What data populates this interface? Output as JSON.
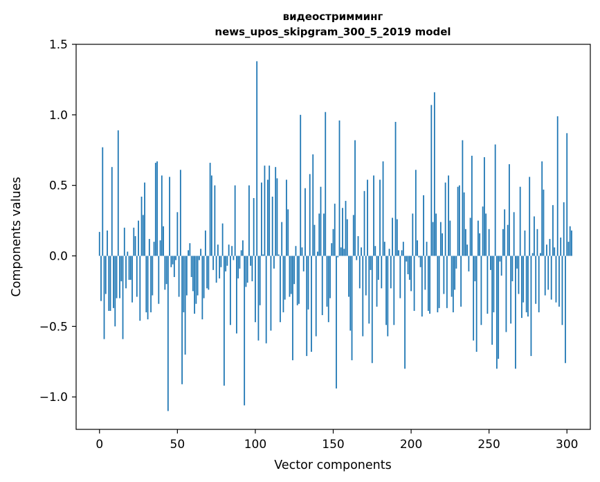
{
  "chart_data": {
    "type": "bar",
    "title_lines": [
      "видеостримминг",
      "news_upos_skipgram_300_5_2019 model"
    ],
    "xlabel": "Vector components",
    "ylabel": "Components values",
    "xlim": [
      -15,
      315
    ],
    "ylim": [
      -1.23,
      1.5
    ],
    "xticks": [
      0,
      50,
      100,
      150,
      200,
      250,
      300
    ],
    "yticks": [
      -1.0,
      -0.5,
      0.0,
      0.5,
      1.0,
      1.5
    ],
    "ytick_labels": [
      "−1.0",
      "−0.5",
      "0.0",
      "0.5",
      "1.0",
      "1.5"
    ],
    "bar_color": "#1f77b4",
    "values": [
      0.17,
      -0.32,
      0.77,
      -0.59,
      -0.27,
      0.18,
      -0.39,
      -0.39,
      0.63,
      -0.37,
      -0.5,
      -0.3,
      0.89,
      -0.3,
      -0.18,
      -0.59,
      0.2,
      -0.23,
      0.03,
      -0.17,
      -0.17,
      -0.33,
      0.2,
      0.14,
      -0.29,
      0.25,
      -0.46,
      0.42,
      0.29,
      0.52,
      -0.4,
      -0.45,
      0.12,
      -0.4,
      -0.28,
      0.1,
      0.66,
      0.67,
      -0.34,
      0.11,
      0.57,
      0.21,
      -0.24,
      -0.2,
      -1.1,
      0.56,
      -0.08,
      -0.06,
      -0.15,
      -0.03,
      0.31,
      -0.29,
      0.61,
      -0.91,
      -0.4,
      -0.7,
      -0.28,
      0.04,
      0.09,
      -0.15,
      -0.25,
      -0.41,
      -0.34,
      -0.28,
      -0.03,
      0.05,
      -0.45,
      -0.3,
      0.18,
      -0.23,
      -0.24,
      0.66,
      0.57,
      -0.1,
      0.5,
      -0.19,
      0.08,
      -0.16,
      -0.08,
      0.23,
      -0.92,
      -0.11,
      -0.07,
      0.08,
      -0.49,
      0.07,
      -0.03,
      0.5,
      -0.55,
      -0.16,
      -0.09,
      0.04,
      0.11,
      -1.06,
      -0.22,
      -0.19,
      0.5,
      -0.07,
      -0.18,
      0.41,
      -0.47,
      1.38,
      -0.6,
      -0.35,
      0.52,
      0.01,
      0.64,
      -0.62,
      0.54,
      0.64,
      -0.53,
      0.42,
      -0.09,
      0.63,
      0.55,
      0.01,
      -0.47,
      0.24,
      -0.4,
      -0.31,
      0.54,
      0.33,
      -0.29,
      -0.27,
      -0.74,
      -0.2,
      0.07,
      -0.35,
      -0.34,
      1.0,
      0.06,
      -0.11,
      0.48,
      -0.71,
      -0.38,
      0.58,
      -0.68,
      0.72,
      0.22,
      -0.57,
      0.03,
      0.3,
      0.49,
      -0.42,
      0.3,
      1.02,
      -0.36,
      -0.47,
      -0.3,
      0.09,
      0.19,
      0.37,
      -0.94,
      -0.01,
      0.96,
      0.06,
      0.34,
      0.05,
      0.39,
      0.26,
      -0.29,
      -0.53,
      -0.74,
      0.29,
      0.82,
      -0.03,
      0.14,
      -0.23,
      0.06,
      -0.57,
      0.46,
      -0.28,
      0.54,
      -0.48,
      -0.1,
      -0.76,
      0.57,
      0.07,
      -0.36,
      -0.17,
      0.54,
      -0.23,
      0.67,
      0.1,
      -0.49,
      -0.57,
      0.05,
      -0.23,
      0.27,
      -0.49,
      0.95,
      0.26,
      0.04,
      -0.3,
      0.04,
      0.1,
      -0.8,
      -0.04,
      -0.13,
      -0.17,
      -0.25,
      0.3,
      -0.39,
      0.61,
      0.11,
      -0.01,
      -0.08,
      -0.43,
      0.43,
      -0.24,
      0.1,
      -0.39,
      -0.41,
      1.07,
      0.24,
      1.16,
      0.3,
      -0.4,
      -0.37,
      0.24,
      0.16,
      -0.27,
      0.52,
      -0.37,
      0.57,
      0.25,
      -0.29,
      -0.4,
      -0.24,
      -0.09,
      0.49,
      0.5,
      -0.36,
      0.82,
      0.45,
      0.19,
      0.08,
      -0.11,
      0.27,
      0.71,
      -0.6,
      -0.18,
      -0.68,
      0.25,
      0.16,
      -0.49,
      0.35,
      0.7,
      0.3,
      -0.41,
      0.19,
      -0.1,
      -0.63,
      -0.4,
      0.79,
      -0.8,
      -0.73,
      -0.04,
      -0.14,
      0.19,
      0.33,
      -0.54,
      0.22,
      0.65,
      -0.48,
      -0.18,
      0.31,
      -0.8,
      -0.09,
      -0.27,
      0.49,
      -0.44,
      -0.33,
      0.18,
      -0.4,
      -0.43,
      0.56,
      -0.71,
      0.02,
      0.28,
      -0.34,
      0.19,
      -0.4,
      0.02,
      0.67,
      0.47,
      -0.28,
      0.08,
      -0.24,
      0.12,
      -0.31,
      0.36,
      0.06,
      -0.33,
      0.99,
      -0.36,
      0.13,
      -0.49,
      0.38,
      -0.76,
      0.87,
      0.1,
      0.21,
      0.18
    ]
  }
}
